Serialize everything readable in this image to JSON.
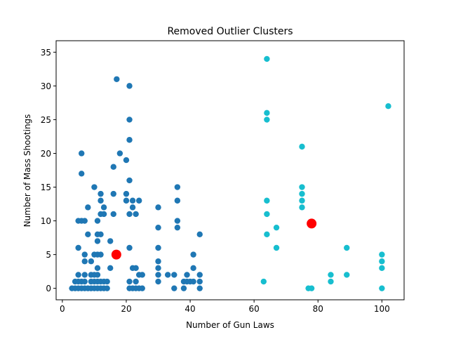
{
  "chart_data": {
    "type": "scatter",
    "title": "Removed Outlier Clusters",
    "xlabel": "Number of Gun Laws",
    "ylabel": "Number of Mass Shootings",
    "xlim": [
      -1.95,
      106.95
    ],
    "ylim": [
      -1.7,
      36.7
    ],
    "xticks": [
      0,
      20,
      40,
      60,
      80,
      100
    ],
    "yticks": [
      0,
      5,
      10,
      15,
      20,
      25,
      30,
      35
    ],
    "grid": false,
    "legend": "none",
    "colors": {
      "cluster_1": "#1f77b4",
      "cluster_2": "#17becf",
      "centroid": "#ff0000"
    },
    "series": [
      {
        "points": [
          [
            3,
            0
          ],
          [
            4,
            0
          ],
          [
            4,
            1
          ],
          [
            5,
            0
          ],
          [
            5,
            1
          ],
          [
            5,
            2
          ],
          [
            5,
            6
          ],
          [
            5,
            10
          ],
          [
            6,
            0
          ],
          [
            6,
            1
          ],
          [
            6,
            10
          ],
          [
            6,
            17
          ],
          [
            6,
            20
          ],
          [
            7,
            0
          ],
          [
            7,
            1
          ],
          [
            7,
            2
          ],
          [
            7,
            4
          ],
          [
            7,
            5
          ],
          [
            7,
            10
          ],
          [
            8,
            0
          ],
          [
            8,
            8
          ],
          [
            8,
            12
          ],
          [
            9,
            0
          ],
          [
            9,
            1
          ],
          [
            9,
            2
          ],
          [
            9,
            4
          ],
          [
            10,
            0
          ],
          [
            10,
            1
          ],
          [
            10,
            2
          ],
          [
            10,
            5
          ],
          [
            10,
            15
          ],
          [
            11,
            0
          ],
          [
            11,
            1
          ],
          [
            11,
            2
          ],
          [
            11,
            3
          ],
          [
            11,
            5
          ],
          [
            11,
            7
          ],
          [
            11,
            8
          ],
          [
            11,
            10
          ],
          [
            12,
            0
          ],
          [
            12,
            1
          ],
          [
            12,
            5
          ],
          [
            12,
            8
          ],
          [
            12,
            11
          ],
          [
            12,
            13
          ],
          [
            12,
            14
          ],
          [
            13,
            0
          ],
          [
            13,
            1
          ],
          [
            13,
            11
          ],
          [
            13,
            12
          ],
          [
            14,
            0
          ],
          [
            14,
            1
          ],
          [
            15,
            3
          ],
          [
            15,
            7
          ],
          [
            16,
            11
          ],
          [
            16,
            14
          ],
          [
            16,
            18
          ],
          [
            17,
            31
          ],
          [
            18,
            20
          ],
          [
            20,
            13
          ],
          [
            20,
            14
          ],
          [
            20,
            19
          ],
          [
            21,
            0
          ],
          [
            21,
            1
          ],
          [
            21,
            6
          ],
          [
            21,
            11
          ],
          [
            21,
            16
          ],
          [
            21,
            22
          ],
          [
            21,
            25
          ],
          [
            21,
            30
          ],
          [
            22,
            0
          ],
          [
            22,
            3
          ],
          [
            22,
            12
          ],
          [
            22,
            13
          ],
          [
            23,
            0
          ],
          [
            23,
            1
          ],
          [
            23,
            3
          ],
          [
            23,
            11
          ],
          [
            24,
            0
          ],
          [
            24,
            2
          ],
          [
            24,
            13
          ],
          [
            25,
            0
          ],
          [
            25,
            2
          ],
          [
            30,
            1
          ],
          [
            30,
            2
          ],
          [
            30,
            3
          ],
          [
            30,
            4
          ],
          [
            30,
            6
          ],
          [
            30,
            9
          ],
          [
            30,
            12
          ],
          [
            33,
            2
          ],
          [
            35,
            0
          ],
          [
            35,
            2
          ],
          [
            36,
            9
          ],
          [
            36,
            10
          ],
          [
            36,
            13
          ],
          [
            36,
            15
          ],
          [
            38,
            0
          ],
          [
            38,
            1
          ],
          [
            39,
            1
          ],
          [
            39,
            2
          ],
          [
            40,
            1
          ],
          [
            41,
            1
          ],
          [
            41,
            3
          ],
          [
            41,
            5
          ],
          [
            43,
            0
          ],
          [
            43,
            1
          ],
          [
            43,
            2
          ],
          [
            43,
            8
          ]
        ]
      },
      {
        "points": [
          [
            63,
            1
          ],
          [
            64,
            8
          ],
          [
            64,
            11
          ],
          [
            64,
            13
          ],
          [
            64,
            25
          ],
          [
            64,
            26
          ],
          [
            64,
            34
          ],
          [
            67,
            6
          ],
          [
            67,
            9
          ],
          [
            75,
            12
          ],
          [
            75,
            13
          ],
          [
            75,
            14
          ],
          [
            75,
            15
          ],
          [
            75,
            21
          ],
          [
            77,
            0
          ],
          [
            78,
            0
          ],
          [
            84,
            1
          ],
          [
            84,
            2
          ],
          [
            89,
            2
          ],
          [
            89,
            6
          ],
          [
            100,
            0
          ],
          [
            100,
            3
          ],
          [
            100,
            4
          ],
          [
            100,
            5
          ],
          [
            102,
            27
          ]
        ]
      }
    ],
    "centroids": [
      [
        16.9,
        5.0
      ],
      [
        78.0,
        9.6
      ]
    ]
  }
}
